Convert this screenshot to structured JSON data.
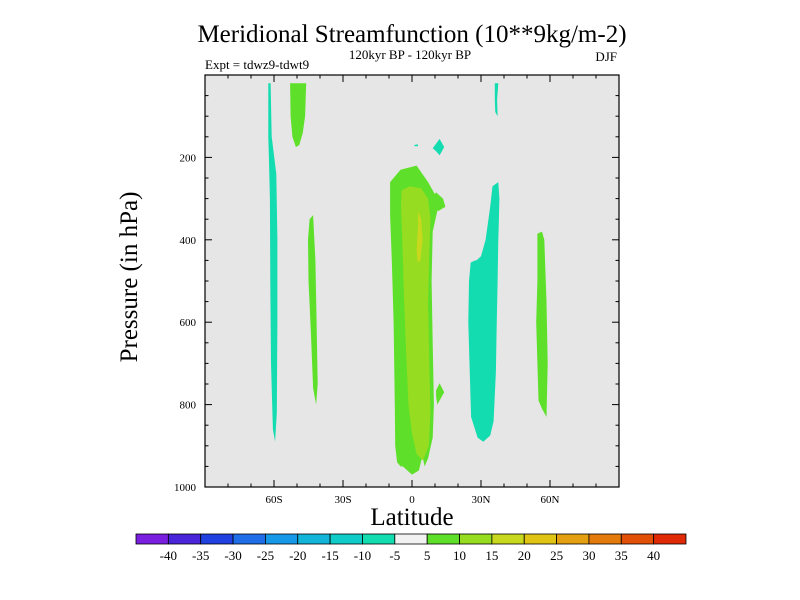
{
  "chart_data": {
    "type": "heatmap",
    "title": "Meridional Streamfunction (10**9kg/m-2)",
    "subtitle": "120kyr BP - 120kyr BP",
    "left_label": "Expt = tdwz9-tdwt9",
    "right_label": "DJF",
    "xlabel": "Latitude",
    "ylabel": "Pressure (in hPa)",
    "xlim": [
      -90,
      90
    ],
    "ylim": [
      0,
      1000
    ],
    "y_reversed": true,
    "background_color": "#e6e6e6",
    "x_ticks": [
      {
        "value": -60,
        "label": "60S"
      },
      {
        "value": -30,
        "label": "30S"
      },
      {
        "value": 0,
        "label": "0"
      },
      {
        "value": 30,
        "label": "30N"
      },
      {
        "value": 60,
        "label": "60N"
      }
    ],
    "y_ticks": [
      {
        "value": 200,
        "label": "200"
      },
      {
        "value": 400,
        "label": "400"
      },
      {
        "value": 600,
        "label": "600"
      },
      {
        "value": 800,
        "label": "800"
      },
      {
        "value": 1000,
        "label": "1000"
      }
    ],
    "colorbar": {
      "levels": [
        -40,
        -35,
        -30,
        -25,
        -20,
        -15,
        -10,
        -5,
        5,
        10,
        15,
        20,
        25,
        30,
        35,
        40
      ],
      "colors": [
        "#7a1ee0",
        "#4a24d8",
        "#2040e0",
        "#1f6ee8",
        "#1598e8",
        "#12b4d8",
        "#10ccc8",
        "#12dcb0",
        "#f2f2f2",
        "#5ee02a",
        "#96dc20",
        "#c8d81c",
        "#e0c414",
        "#e4a010",
        "#e47a0c",
        "#e25008",
        "#e02a06"
      ]
    },
    "regions": [
      {
        "name": "cyan-60s-column",
        "class": "-10 to -5",
        "color": "#12dcb0",
        "polygon": [
          [
            -62.5,
            20
          ],
          [
            -61.5,
            20
          ],
          [
            -61,
            150
          ],
          [
            -59,
            240
          ],
          [
            -58.5,
            400
          ],
          [
            -58.5,
            600
          ],
          [
            -58.8,
            820
          ],
          [
            -59.5,
            890
          ],
          [
            -60.5,
            860
          ],
          [
            -61.3,
            700
          ],
          [
            -61.6,
            500
          ],
          [
            -61.8,
            300
          ],
          [
            -62.2,
            200
          ],
          [
            -62.5,
            150
          ]
        ]
      },
      {
        "name": "green-50s-top",
        "class": "5 to 10",
        "color": "#5ee02a",
        "polygon": [
          [
            -53,
            20
          ],
          [
            -46,
            20
          ],
          [
            -46.5,
            100
          ],
          [
            -47.5,
            140
          ],
          [
            -49,
            170
          ],
          [
            -50.5,
            175
          ],
          [
            -52,
            150
          ],
          [
            -52.8,
            100
          ]
        ]
      },
      {
        "name": "green-40s-column",
        "class": "5 to 10",
        "color": "#5ee02a",
        "polygon": [
          [
            -44.5,
            350
          ],
          [
            -43,
            340
          ],
          [
            -42,
            450
          ],
          [
            -41.5,
            600
          ],
          [
            -41,
            750
          ],
          [
            -41.7,
            800
          ],
          [
            -43,
            760
          ],
          [
            -44,
            620
          ],
          [
            -45,
            500
          ],
          [
            -45.2,
            400
          ]
        ]
      },
      {
        "name": "green-equator-column",
        "class": "5 to 10",
        "color": "#5ee02a",
        "polygon": [
          [
            -9.5,
            260
          ],
          [
            -5,
            230
          ],
          [
            2,
            220
          ],
          [
            7,
            260
          ],
          [
            10,
            290
          ],
          [
            11,
            330
          ],
          [
            9,
            380
          ],
          [
            8.5,
            500
          ],
          [
            9,
            650
          ],
          [
            9.5,
            800
          ],
          [
            9,
            880
          ],
          [
            7,
            930
          ],
          [
            5.5,
            950
          ],
          [
            4.5,
            925
          ],
          [
            3,
            960
          ],
          [
            0,
            970
          ],
          [
            -2,
            960
          ],
          [
            -4,
            950
          ],
          [
            -5,
            950
          ],
          [
            -6.5,
            940
          ],
          [
            -7.3,
            900
          ],
          [
            -7.5,
            800
          ],
          [
            -8,
            600
          ],
          [
            -8.8,
            450
          ],
          [
            -9.5,
            340
          ]
        ]
      },
      {
        "name": "green-10n-blob",
        "class": "5 to 10",
        "color": "#5ee02a",
        "polygon": [
          [
            8.2,
            300
          ],
          [
            10.5,
            285
          ],
          [
            13.5,
            300
          ],
          [
            14.5,
            320
          ],
          [
            11.5,
            330
          ],
          [
            9.5,
            325
          ]
        ]
      },
      {
        "name": "green-12n-small",
        "class": "5 to 10",
        "color": "#5ee02a",
        "polygon": [
          [
            10.5,
            765
          ],
          [
            12,
            748
          ],
          [
            14,
            770
          ],
          [
            12,
            790
          ],
          [
            11,
            800
          ],
          [
            10.5,
            780
          ]
        ]
      },
      {
        "name": "yellowgreen-equator-core",
        "class": "10 to 15",
        "color": "#96dc20",
        "polygon": [
          [
            -4.5,
            280
          ],
          [
            -1,
            270
          ],
          [
            4,
            275
          ],
          [
            7,
            300
          ],
          [
            8,
            350
          ],
          [
            7.5,
            430
          ],
          [
            7,
            550
          ],
          [
            7.5,
            700
          ],
          [
            8,
            820
          ],
          [
            7.3,
            900
          ],
          [
            4.8,
            935
          ],
          [
            2,
            920
          ],
          [
            0,
            870
          ],
          [
            -1.5,
            800
          ],
          [
            -2.5,
            680
          ],
          [
            -3.5,
            540
          ],
          [
            -4.2,
            400
          ],
          [
            -4.8,
            320
          ]
        ]
      },
      {
        "name": "yellow-equator-core",
        "class": "15 to 20",
        "color": "#c8d81c",
        "polygon": [
          [
            2.6,
            330
          ],
          [
            4,
            350
          ],
          [
            4.6,
            400
          ],
          [
            4,
            430
          ],
          [
            3.7,
            450
          ],
          [
            2.5,
            455
          ],
          [
            2,
            430
          ],
          [
            2.2,
            400
          ],
          [
            2.6,
            370
          ]
        ]
      },
      {
        "name": "cyan-10n-diamond",
        "class": "-10 to -5",
        "color": "#12dcb0",
        "polygon": [
          [
            9,
            178
          ],
          [
            12,
            155
          ],
          [
            14,
            175
          ],
          [
            12,
            195
          ],
          [
            10.5,
            185
          ]
        ]
      },
      {
        "name": "cyan-2n-tiny",
        "class": "-10 to -5",
        "color": "#12dcb0",
        "polygon": [
          [
            1,
            170
          ],
          [
            2.5,
            168
          ],
          [
            2.6,
            173
          ],
          [
            1.2,
            173
          ]
        ]
      },
      {
        "name": "cyan-37n-top",
        "class": "-10 to -5",
        "color": "#12dcb0",
        "polygon": [
          [
            36,
            20
          ],
          [
            37.5,
            20
          ],
          [
            37,
            60
          ],
          [
            37.2,
            100
          ],
          [
            36.2,
            90
          ],
          [
            36,
            60
          ]
        ]
      },
      {
        "name": "cyan-30n-column",
        "class": "-10 to -5",
        "color": "#12dcb0",
        "polygon": [
          [
            35,
            270
          ],
          [
            37.5,
            260
          ],
          [
            38,
            300
          ],
          [
            37.8,
            350
          ],
          [
            37.5,
            400
          ],
          [
            37.2,
            500
          ],
          [
            36.8,
            620
          ],
          [
            36.5,
            720
          ],
          [
            35.5,
            840
          ],
          [
            34,
            875
          ],
          [
            31,
            890
          ],
          [
            28.5,
            880
          ],
          [
            25.7,
            830
          ],
          [
            25,
            700
          ],
          [
            24.5,
            600
          ],
          [
            24.8,
            500
          ],
          [
            25.5,
            455
          ],
          [
            27.5,
            450
          ],
          [
            28,
            450
          ],
          [
            30,
            440
          ],
          [
            32,
            400
          ],
          [
            33,
            360
          ],
          [
            34,
            320
          ]
        ]
      },
      {
        "name": "green-55n-column",
        "class": "5 to 10",
        "color": "#5ee02a",
        "polygon": [
          [
            54.5,
            385
          ],
          [
            56.5,
            380
          ],
          [
            57.5,
            400
          ],
          [
            58.5,
            550
          ],
          [
            59,
            700
          ],
          [
            58.5,
            830
          ],
          [
            56.5,
            810
          ],
          [
            55,
            790
          ],
          [
            54.5,
            700
          ],
          [
            54,
            600
          ],
          [
            54.5,
            500
          ]
        ]
      }
    ]
  }
}
